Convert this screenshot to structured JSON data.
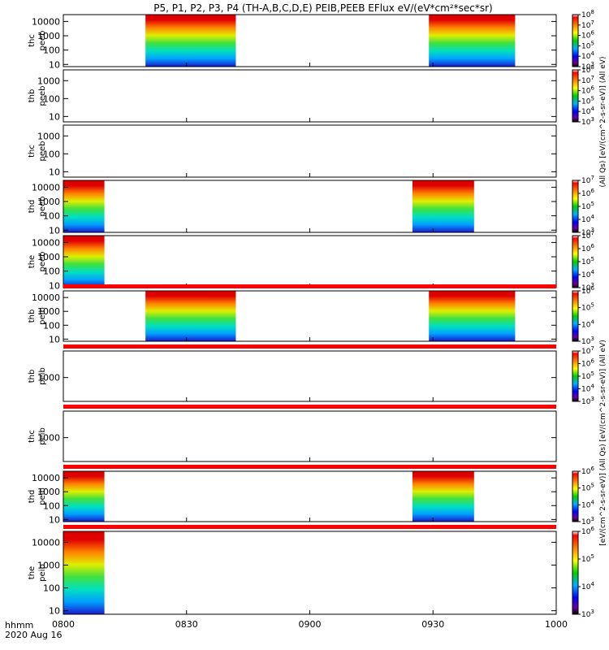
{
  "chart_data": {
    "type": "heatmap",
    "title": "P5, P1, P2, P3, P4 (TH-A,B,C,D,E) PEIB,PEEB EFlux eV/(eV*cm²*sec*sr)",
    "x_axis": {
      "ticks": [
        "0800",
        "0830",
        "0900",
        "0930",
        "1000"
      ],
      "tick_minutes": [
        0,
        30,
        60,
        90,
        120
      ],
      "range_minutes": [
        0,
        120
      ],
      "label_line1": "hhmm",
      "label_line2": "2020 Aug 16"
    },
    "y_scale": "log",
    "grid": false,
    "colorbar_label_eesa": "(All Qs) [eV/(cm^2-s-sr-eV)] (All eV)",
    "colorbar_label_iesa": "[eV/(cm^2-s-sr-eV)] (All Qs) [eV/(cm^2-s-sr-eV)] (All eV)",
    "panels": [
      {
        "probe": "thc",
        "species": "peeb",
        "ylim": [
          7,
          30000
        ],
        "yticks": [
          "10",
          "100",
          "1000",
          "10000"
        ],
        "cbar": {
          "min_exp": 3,
          "max_exp": 8
        },
        "intervals": [
          [
            20,
            42
          ],
          [
            89,
            110
          ]
        ],
        "bars": []
      },
      {
        "probe": "thb",
        "species": "peeb",
        "ylim": [
          5,
          4000
        ],
        "yticks": [
          "10",
          "100",
          "1000"
        ],
        "cbar": {
          "min_exp": 3,
          "max_exp": 8
        },
        "intervals": [],
        "bars": []
      },
      {
        "probe": "thc",
        "species": "peeb",
        "ylim": [
          5,
          4000
        ],
        "yticks": [
          "10",
          "100",
          "1000"
        ],
        "cbar": null,
        "intervals": [],
        "bars": []
      },
      {
        "probe": "thd",
        "species": "peeb",
        "ylim": [
          7,
          30000
        ],
        "yticks": [
          "10",
          "100",
          "1000",
          "10000"
        ],
        "cbar": {
          "min_exp": 3,
          "max_exp": 7
        },
        "intervals": [
          [
            0,
            10
          ],
          [
            85,
            100
          ]
        ],
        "bars": []
      },
      {
        "probe": "the",
        "species": "peeb",
        "ylim": [
          7,
          30000
        ],
        "yticks": [
          "10",
          "100",
          "1000",
          "10000"
        ],
        "cbar": {
          "min_exp": 3,
          "max_exp": 7
        },
        "intervals": [
          [
            0,
            10
          ]
        ],
        "bars": []
      },
      {
        "probe": "thb",
        "species": "peib",
        "ylim": [
          7,
          30000
        ],
        "yticks": [
          "10",
          "100",
          "1000",
          "10000"
        ],
        "cbar": {
          "min_exp": 3,
          "max_exp": 6
        },
        "intervals": [
          [
            20,
            42
          ],
          [
            89,
            110
          ]
        ],
        "bars": [
          [
            0,
            120
          ]
        ]
      },
      {
        "probe": "thb",
        "species": "peib",
        "ylim": [
          200,
          6000
        ],
        "yticks": [
          "1000"
        ],
        "cbar": {
          "min_exp": 3,
          "max_exp": 7
        },
        "intervals": [],
        "bars": [
          [
            0,
            120
          ]
        ]
      },
      {
        "probe": "thc",
        "species": "peib",
        "ylim": [
          200,
          6000
        ],
        "yticks": [
          "1000"
        ],
        "cbar": null,
        "intervals": [],
        "bars": [
          [
            0,
            120
          ]
        ]
      },
      {
        "probe": "thd",
        "species": "peib",
        "ylim": [
          7,
          30000
        ],
        "yticks": [
          "10",
          "100",
          "1000",
          "10000"
        ],
        "cbar": {
          "min_exp": 3,
          "max_exp": 6
        },
        "intervals": [
          [
            0,
            10
          ],
          [
            85,
            100
          ]
        ],
        "bars": [
          [
            0,
            120
          ]
        ]
      },
      {
        "probe": "the",
        "species": "peib",
        "ylim": [
          7,
          30000
        ],
        "yticks": [
          "10",
          "100",
          "1000",
          "10000"
        ],
        "cbar": {
          "min_exp": 3,
          "max_exp": 6
        },
        "intervals": [
          [
            0,
            10
          ]
        ],
        "bars": [
          [
            0,
            120
          ]
        ]
      }
    ]
  }
}
